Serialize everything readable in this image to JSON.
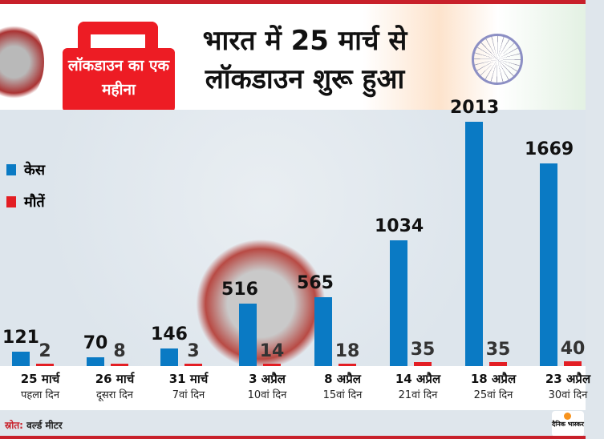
{
  "header": {
    "badge": "लॉकडाउन का एक महीना",
    "title_line1": "भारत में 25 मार्च से",
    "title_line2": "लॉकडाउन शुरू हुआ"
  },
  "chart_data": {
    "type": "bar",
    "categories": [
      "25 मार्च",
      "26 मार्च",
      "31 मार्च",
      "3 अप्रैल",
      "8 अप्रैल",
      "14 अप्रैल",
      "18 अप्रैल",
      "23 अप्रैल"
    ],
    "sublabels": [
      "पहला दिन",
      "दूसरा दिन",
      "7वां दिन",
      "10वां दिन",
      "15वां दिन",
      "21वां दिन",
      "25वां दिन",
      "30वां दिन"
    ],
    "series": [
      {
        "name": "केस",
        "color": "#0a7ac4",
        "values": [
          121,
          70,
          146,
          516,
          565,
          1034,
          2013,
          1669
        ]
      },
      {
        "name": "मौतें",
        "color": "#e31e24",
        "values": [
          2,
          8,
          3,
          14,
          18,
          35,
          35,
          40
        ]
      }
    ],
    "ylim": [
      0,
      2013
    ],
    "grid": false,
    "legend": "left"
  },
  "footer": {
    "source_label": "स्रोत:",
    "source": "वर्ल्ड मीटर",
    "logo": "दैनिक भास्कर"
  }
}
